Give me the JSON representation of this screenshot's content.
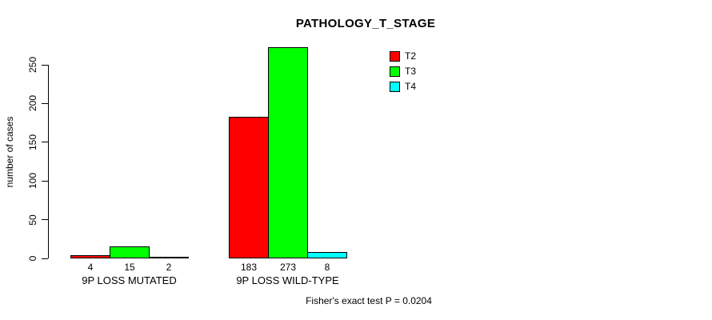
{
  "title": "PATHOLOGY_T_STAGE",
  "chart_data": {
    "type": "bar",
    "title": "PATHOLOGY_T_STAGE",
    "categories": [
      "9P LOSS MUTATED",
      "9P LOSS WILD-TYPE"
    ],
    "series": [
      {
        "name": "T2",
        "color": "#FF0000",
        "values": [
          4,
          183
        ]
      },
      {
        "name": "T3",
        "color": "#00FF00",
        "values": [
          15,
          273
        ]
      },
      {
        "name": "T4",
        "color": "#00FFFF",
        "values": [
          2,
          8
        ]
      }
    ],
    "xlabel": "",
    "ylabel": "number of cases",
    "ylim": [
      0,
      250
    ],
    "yticks": [
      0,
      50,
      100,
      150,
      200,
      250
    ],
    "grid": false,
    "legend_position": "top-right",
    "bar_value_labels": true,
    "annotation": "Fisher's exact test P = 0.0204"
  },
  "footer": {
    "text": "Fisher's exact test P = 0.0204"
  }
}
